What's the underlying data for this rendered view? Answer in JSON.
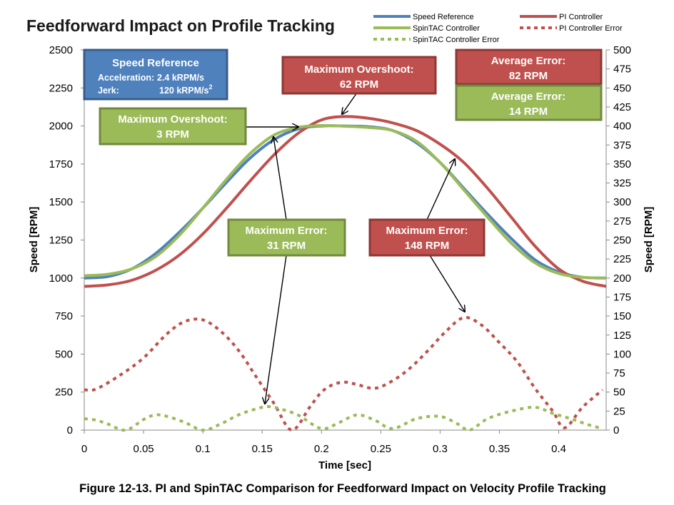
{
  "chart_data": {
    "type": "line",
    "title": "Feedforward Impact on Profile Tracking",
    "xlabel": "Time [sec]",
    "ylabel": "Speed [RPM]",
    "y2label": "Speed [RPM]",
    "xlim": [
      0,
      0.44
    ],
    "ylim": [
      0,
      2500
    ],
    "y2lim": [
      0,
      500
    ],
    "xticks": [
      "0",
      "0.05",
      "0.1",
      "0.15",
      "0.2",
      "0.25",
      "0.3",
      "0.35",
      "0.4"
    ],
    "yticks": [
      "0",
      "250",
      "500",
      "750",
      "1000",
      "1250",
      "1500",
      "1750",
      "2000",
      "2250",
      "2500"
    ],
    "y2ticks": [
      "0",
      "25",
      "50",
      "75",
      "100",
      "125",
      "150",
      "175",
      "200",
      "225",
      "250",
      "275",
      "300",
      "325",
      "350",
      "375",
      "400",
      "425",
      "450",
      "475",
      "500"
    ],
    "grid": false,
    "legend_position": "top-right",
    "series": [
      {
        "name": "Speed Reference",
        "color": "#4f81bd",
        "style": "solid",
        "axis": "left",
        "x": [
          0,
          0.02,
          0.04,
          0.06,
          0.08,
          0.1,
          0.12,
          0.14,
          0.16,
          0.18,
          0.2,
          0.22,
          0.24,
          0.26,
          0.28,
          0.3,
          0.32,
          0.34,
          0.36,
          0.38,
          0.4,
          0.42,
          0.44
        ],
        "y": [
          1000,
          1010,
          1060,
          1160,
          1300,
          1460,
          1630,
          1790,
          1910,
          1980,
          2000,
          2000,
          1995,
          1970,
          1890,
          1760,
          1590,
          1420,
          1260,
          1120,
          1040,
          1005,
          1000
        ]
      },
      {
        "name": "PI Controller",
        "color": "#c0504d",
        "style": "solid",
        "axis": "left",
        "x": [
          0,
          0.02,
          0.04,
          0.06,
          0.08,
          0.1,
          0.12,
          0.14,
          0.16,
          0.18,
          0.2,
          0.22,
          0.24,
          0.26,
          0.28,
          0.3,
          0.32,
          0.34,
          0.36,
          0.38,
          0.4,
          0.42,
          0.44
        ],
        "y": [
          945,
          955,
          985,
          1050,
          1150,
          1290,
          1460,
          1640,
          1810,
          1950,
          2040,
          2062,
          2050,
          2020,
          1970,
          1880,
          1760,
          1590,
          1400,
          1210,
          1060,
          980,
          945
        ]
      },
      {
        "name": "SpinTAC Controller",
        "color": "#9bbb59",
        "style": "solid",
        "axis": "left",
        "x": [
          0,
          0.02,
          0.04,
          0.06,
          0.08,
          0.1,
          0.12,
          0.14,
          0.16,
          0.18,
          0.2,
          0.22,
          0.24,
          0.26,
          0.28,
          0.3,
          0.32,
          0.34,
          0.36,
          0.38,
          0.4,
          0.42,
          0.44
        ],
        "y": [
          1015,
          1025,
          1060,
          1140,
          1280,
          1460,
          1650,
          1820,
          1940,
          1990,
          2003,
          1998,
          1990,
          1970,
          1900,
          1760,
          1580,
          1400,
          1230,
          1100,
          1030,
          1005,
          1000
        ]
      },
      {
        "name": "PI Controller Error",
        "color": "#c0504d",
        "style": "dashed",
        "axis": "right",
        "x": [
          0,
          0.01,
          0.03,
          0.05,
          0.07,
          0.085,
          0.1,
          0.115,
          0.13,
          0.145,
          0.16,
          0.175,
          0.19,
          0.2,
          0.21,
          0.22,
          0.23,
          0.245,
          0.26,
          0.275,
          0.29,
          0.305,
          0.32,
          0.335,
          0.35,
          0.365,
          0.38,
          0.395,
          0.405,
          0.42,
          0.437
        ],
        "y": [
          53,
          54,
          72,
          95,
          127,
          143,
          145,
          130,
          105,
          70,
          35,
          0,
          30,
          50,
          60,
          63,
          60,
          55,
          65,
          82,
          105,
          130,
          148,
          138,
          115,
          90,
          55,
          25,
          3,
          30,
          53
        ]
      },
      {
        "name": "SpinTAC Controller Error",
        "color": "#9bbb59",
        "style": "dashed",
        "axis": "right",
        "x": [
          0,
          0.01,
          0.02,
          0.035,
          0.05,
          0.06,
          0.07,
          0.085,
          0.1,
          0.115,
          0.13,
          0.145,
          0.155,
          0.165,
          0.18,
          0.2,
          0.215,
          0.23,
          0.245,
          0.26,
          0.28,
          0.3,
          0.315,
          0.325,
          0.34,
          0.36,
          0.38,
          0.395,
          0.41,
          0.425,
          0.437
        ],
        "y": [
          15,
          13,
          8,
          0,
          14,
          20,
          18,
          10,
          0,
          8,
          20,
          28,
          31,
          28,
          20,
          2,
          10,
          20,
          13,
          2,
          15,
          18,
          8,
          0,
          15,
          25,
          30,
          22,
          15,
          7,
          2
        ]
      }
    ],
    "annotations": {
      "speed_reference_box": {
        "title": "Speed Reference",
        "line1_label": "Acceleration:",
        "line1_value": "2.4 kRPM/s",
        "line2_label": "Jerk:",
        "line2_value": "120 kRPM/s",
        "line2_sup": "2"
      },
      "pi_overshoot": {
        "title": "Maximum Overshoot:",
        "value": "62 RPM"
      },
      "spintac_overshoot": {
        "title": "Maximum Overshoot:",
        "value": "3 RPM"
      },
      "pi_avg_error": {
        "title": "Average Error:",
        "value": "82 RPM"
      },
      "spintac_avg_error": {
        "title": "Average Error:",
        "value": "14 RPM"
      },
      "spintac_max_error": {
        "title": "Maximum Error:",
        "value": "31 RPM"
      },
      "pi_max_error": {
        "title": "Maximum Error:",
        "value": "148 RPM"
      }
    }
  },
  "caption": "Figure 12-13. PI and SpinTAC Comparison for Feedforward Impact on Velocity Profile Tracking"
}
